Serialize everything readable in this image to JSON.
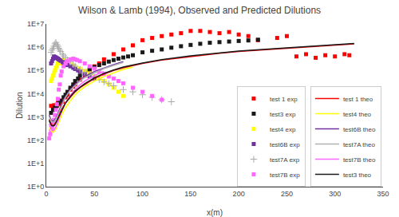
{
  "chart_data": {
    "type": "scatter",
    "title": "Wilson & Lamb (1994), Observed and Predicted Dilutions",
    "x_label": "x(m)",
    "y_label": "Dilution",
    "log": "y",
    "grid": false,
    "legend": "lower right",
    "xlim": [
      0,
      350
    ],
    "xticks": [
      0,
      50,
      100,
      150,
      200,
      250,
      300,
      350
    ],
    "ylim": [
      1.0,
      10000000.0
    ],
    "yticks": [
      {
        "value": 1.0,
        "label": "1E+0"
      },
      {
        "value": 10.0,
        "label": "1E+1"
      },
      {
        "value": 100.0,
        "label": "1E+2"
      },
      {
        "value": 1000.0,
        "label": "1E+3"
      },
      {
        "value": 10000.0,
        "label": "1E+4"
      },
      {
        "value": 100000.0,
        "label": "1E+5"
      },
      {
        "value": 1000000.0,
        "label": "1E+6"
      },
      {
        "value": 10000000.0,
        "label": "1E+7"
      }
    ],
    "series": [
      {
        "name": "test 1 exp",
        "type": "scatter",
        "color": "#ff0000",
        "marker": "square",
        "x": [
          5,
          7,
          8,
          10,
          12,
          14,
          15,
          17,
          20,
          22,
          25,
          28,
          30,
          35,
          40,
          45,
          50,
          55,
          60,
          70,
          80,
          90,
          100,
          110,
          120,
          130,
          140,
          150,
          160,
          170,
          180,
          190,
          200,
          210,
          220,
          240,
          250,
          260,
          270,
          280,
          290,
          300,
          310,
          315
        ],
        "values": [
          3000,
          2500,
          3200,
          2800,
          4000,
          3500,
          5000,
          4500,
          7000,
          9000,
          15000,
          20000,
          25000,
          40000,
          60000,
          100000,
          150000,
          200000,
          300000,
          500000,
          800000,
          1200000,
          2000000,
          2500000,
          3000000,
          3500000,
          4000000,
          5000000,
          5000000,
          4500000,
          4000000,
          4500000,
          3500000,
          3000000,
          2000000,
          2500000,
          3000000,
          400000,
          500000,
          350000,
          450000,
          400000,
          500000,
          450000
        ]
      },
      {
        "name": "test3 exp",
        "type": "scatter",
        "color": "#1a1a1a",
        "marker": "square",
        "x": [
          5,
          7,
          9,
          11,
          13,
          15,
          18,
          20,
          22,
          25,
          28,
          30,
          33,
          35,
          40,
          45,
          50,
          55,
          60,
          65,
          70,
          75,
          80,
          85,
          90,
          100,
          110,
          120,
          130,
          140,
          150,
          160,
          170,
          180,
          190,
          200,
          210,
          220
        ],
        "values": [
          1500,
          2000,
          2500,
          3000,
          4000,
          5000,
          7000,
          9000,
          12000,
          18000,
          25000,
          35000,
          45000,
          60000,
          90000,
          110000,
          140000,
          170000,
          200000,
          240000,
          280000,
          320000,
          360000,
          400000,
          450000,
          600000,
          700000,
          800000,
          950000,
          1100000,
          1250000,
          1400000,
          1550000,
          1650000,
          1750000,
          1850000,
          1950000,
          2100000
        ]
      },
      {
        "name": "test4 exp",
        "type": "scatter",
        "color": "#ffff00",
        "marker": "square",
        "x": [
          5,
          6,
          7,
          8,
          9,
          10,
          11,
          12,
          13,
          14,
          15,
          17,
          18,
          20,
          22,
          25,
          28,
          30,
          35,
          40,
          45,
          50,
          55,
          60,
          65,
          70,
          75,
          80
        ],
        "values": [
          35000,
          45000,
          60000,
          80000,
          100000,
          130000,
          160000,
          200000,
          230000,
          200000,
          250000,
          280000,
          260000,
          250000,
          200000,
          180000,
          160000,
          140000,
          120000,
          95000,
          75000,
          55000,
          45000,
          35000,
          25000,
          18000,
          12000,
          8000
        ]
      },
      {
        "name": "test6B exp",
        "type": "scatter",
        "color": "#7030a0",
        "marker": "square",
        "x": [
          5,
          6,
          7,
          8,
          9,
          10,
          11,
          12,
          13,
          14,
          15,
          17,
          18,
          20,
          22,
          25,
          28,
          30,
          33,
          35,
          40,
          45,
          50
        ],
        "values": [
          200000,
          250000,
          320000,
          400000,
          380000,
          360000,
          340000,
          320000,
          300000,
          280000,
          260000,
          230000,
          210000,
          190000,
          170000,
          150000,
          130000,
          115000,
          100000,
          90000,
          70000,
          55000,
          45000
        ]
      },
      {
        "name": "test7A exp",
        "type": "scatter",
        "color": "#aaaaaa",
        "marker": "cross",
        "x": [
          5,
          6,
          7,
          8,
          9,
          10,
          11,
          12,
          13,
          14,
          15,
          17,
          18,
          20,
          22,
          25,
          28,
          30,
          35,
          40,
          45,
          50,
          55,
          60,
          65,
          70,
          80,
          90,
          100,
          110,
          120,
          130
        ],
        "values": [
          600000,
          750000,
          900000,
          1100000,
          1400000,
          1600000,
          1300000,
          1100000,
          900000,
          750000,
          650000,
          500000,
          420000,
          350000,
          280000,
          230000,
          180000,
          150000,
          110000,
          80000,
          65000,
          50000,
          40000,
          32000,
          27000,
          22000,
          15000,
          12000,
          9000,
          7000,
          5500,
          4500
        ]
      },
      {
        "name": "test7B exp",
        "type": "scatter",
        "color": "#ff66ff",
        "marker": "square",
        "x": [
          3,
          4,
          5,
          6,
          7,
          8,
          9,
          10,
          11,
          12,
          13,
          14,
          15,
          16,
          18,
          20,
          22,
          25,
          28,
          30,
          32,
          35,
          40,
          45,
          50,
          55,
          60,
          65,
          70,
          75,
          80,
          90,
          100,
          110,
          120
        ],
        "values": [
          120,
          180,
          250,
          350,
          500,
          750,
          1200,
          2000,
          3500,
          6000,
          15000,
          25000,
          60000,
          90000,
          150000,
          200000,
          250000,
          300000,
          320000,
          300000,
          280000,
          250000,
          200000,
          150000,
          120000,
          90000,
          70000,
          55000,
          45000,
          35000,
          28000,
          18000,
          12000,
          8000,
          5500
        ]
      },
      {
        "name": "test 1 theo",
        "type": "line",
        "color": "#ff0000",
        "line_style": "solid",
        "x": [
          3,
          4,
          5,
          6,
          7,
          8,
          9,
          10,
          11,
          12,
          13,
          14,
          15,
          17,
          20,
          25,
          30,
          35,
          40,
          50,
          60,
          70,
          80,
          100,
          120,
          150,
          180,
          200,
          250,
          300,
          320
        ],
        "values": [
          800,
          600,
          500,
          450,
          430,
          450,
          500,
          600,
          700,
          900,
          1100,
          1400,
          1800,
          2500,
          4000,
          7000,
          12000,
          18000,
          25000,
          45000,
          70000,
          100000,
          130000,
          200000,
          280000,
          400000,
          550000,
          650000,
          900000,
          1200000,
          1400000
        ]
      },
      {
        "name": "test4 theo",
        "type": "line",
        "color": "#ffff00",
        "line_style": "solid",
        "x": [
          3,
          4,
          5,
          6,
          7,
          8,
          9,
          10,
          11,
          12,
          13,
          14,
          15,
          17,
          20,
          25,
          30,
          35,
          40,
          50,
          60,
          70,
          80,
          90
        ],
        "values": [
          400,
          300,
          250,
          230,
          220,
          230,
          260,
          300,
          380,
          480,
          600,
          800,
          1000,
          1500,
          2500,
          5000,
          9000,
          14000,
          20000,
          35000,
          55000,
          80000,
          110000,
          140000
        ]
      },
      {
        "name": "test6B theo",
        "type": "line",
        "color": "#7030a0",
        "line_style": "solid",
        "x": [
          3,
          4,
          5,
          6,
          7,
          8,
          9,
          10,
          11,
          12,
          13,
          14,
          15,
          17,
          20,
          25,
          30,
          35,
          40,
          50,
          60,
          70,
          80
        ],
        "values": [
          1200,
          900,
          750,
          680,
          650,
          680,
          750,
          900,
          1100,
          1400,
          1800,
          2300,
          3000,
          4500,
          7500,
          15000,
          25000,
          38000,
          55000,
          90000,
          130000,
          180000,
          240000
        ]
      },
      {
        "name": "test7A theo",
        "type": "line",
        "color": "#b0b0b0",
        "line_style": "solid",
        "x": [
          3,
          4,
          5,
          6,
          7,
          8,
          9,
          10,
          11,
          12,
          13,
          14,
          15,
          17,
          20,
          25,
          30,
          35,
          40,
          50,
          60,
          70,
          80
        ],
        "values": [
          1000,
          800,
          680,
          620,
          600,
          620,
          680,
          800,
          1000,
          1250,
          1600,
          2000,
          2600,
          4000,
          7000,
          14000,
          23000,
          35000,
          50000,
          80000,
          120000,
          165000,
          220000
        ]
      },
      {
        "name": "test7B theo",
        "type": "line",
        "color": "#ff66ff",
        "line_style": "solid",
        "x": [
          3,
          4,
          5,
          6,
          7,
          8,
          9,
          10,
          11,
          12,
          13,
          14,
          15,
          17,
          20,
          25,
          30,
          35,
          40,
          50,
          60
        ],
        "values": [
          500,
          380,
          300,
          270,
          260,
          270,
          310,
          380,
          480,
          620,
          800,
          1050,
          1400,
          2200,
          4000,
          8500,
          15000,
          24000,
          35000,
          60000,
          92000
        ]
      },
      {
        "name": "test3 theo",
        "type": "line",
        "color": "#1a1a1a",
        "line_style": "solid",
        "x": [
          3,
          4,
          5,
          6,
          7,
          8,
          9,
          10,
          11,
          12,
          13,
          14,
          15,
          17,
          20,
          25,
          30,
          35,
          40,
          50,
          60,
          70,
          80,
          100,
          120,
          150,
          180,
          200,
          250,
          300,
          320
        ],
        "values": [
          700,
          550,
          450,
          410,
          400,
          410,
          460,
          560,
          680,
          850,
          1050,
          1300,
          1650,
          2400,
          4000,
          7500,
          13000,
          19000,
          27000,
          48000,
          75000,
          105000,
          140000,
          210000,
          290000,
          420000,
          570000,
          680000,
          940000,
          1250000,
          1450000
        ]
      }
    ]
  }
}
